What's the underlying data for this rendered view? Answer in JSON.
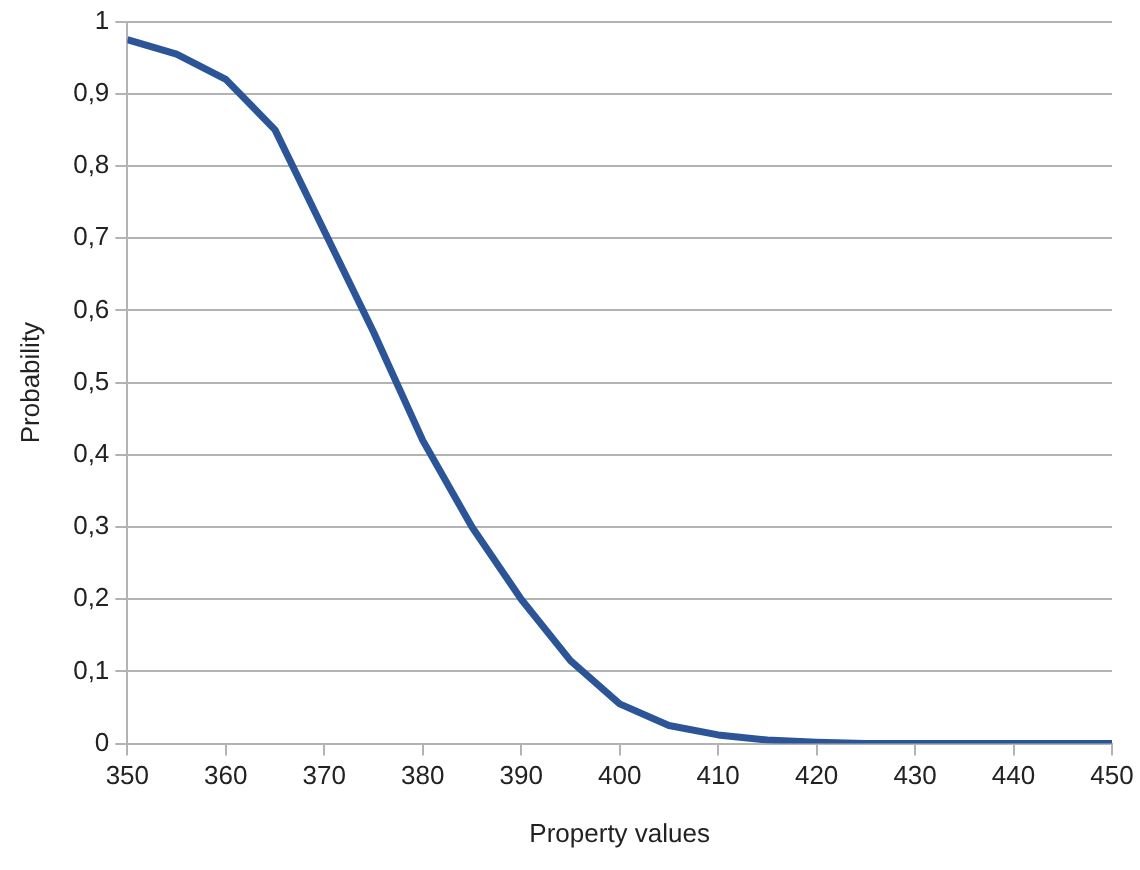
{
  "chart_data": {
    "type": "line",
    "xlabel": "Property values",
    "ylabel": "Probability",
    "x": [
      350,
      355,
      360,
      365,
      370,
      375,
      380,
      385,
      390,
      395,
      400,
      405,
      410,
      415,
      420,
      425,
      430,
      440,
      450
    ],
    "series": [
      {
        "color": "#2b5597",
        "values": [
          0.975,
          0.955,
          0.92,
          0.85,
          0.71,
          0.57,
          0.42,
          0.3,
          0.2,
          0.115,
          0.055,
          0.025,
          0.012,
          0.005,
          0.002,
          0,
          0,
          0,
          0
        ]
      }
    ],
    "xlim": [
      350,
      450
    ],
    "xticks": [
      350,
      360,
      370,
      380,
      390,
      400,
      410,
      420,
      430,
      440,
      450
    ],
    "ylim": [
      0,
      1
    ],
    "yticks": [
      0,
      {
        "value": 0.1,
        "label": "0,1"
      },
      {
        "value": 0.2,
        "label": "0,2"
      },
      {
        "value": 0.3,
        "label": "0,3"
      },
      {
        "value": 0.4,
        "label": "0,4"
      },
      {
        "value": 0.5,
        "label": "0,5"
      },
      {
        "value": 0.6,
        "label": "0,6"
      },
      {
        "value": 0.7,
        "label": "0,7"
      },
      {
        "value": 0.8,
        "label": "0,8"
      },
      {
        "value": 0.9,
        "label": "0,9"
      },
      1
    ],
    "grid": "y",
    "legend": false,
    "marker": "none",
    "line_style": "solid"
  }
}
